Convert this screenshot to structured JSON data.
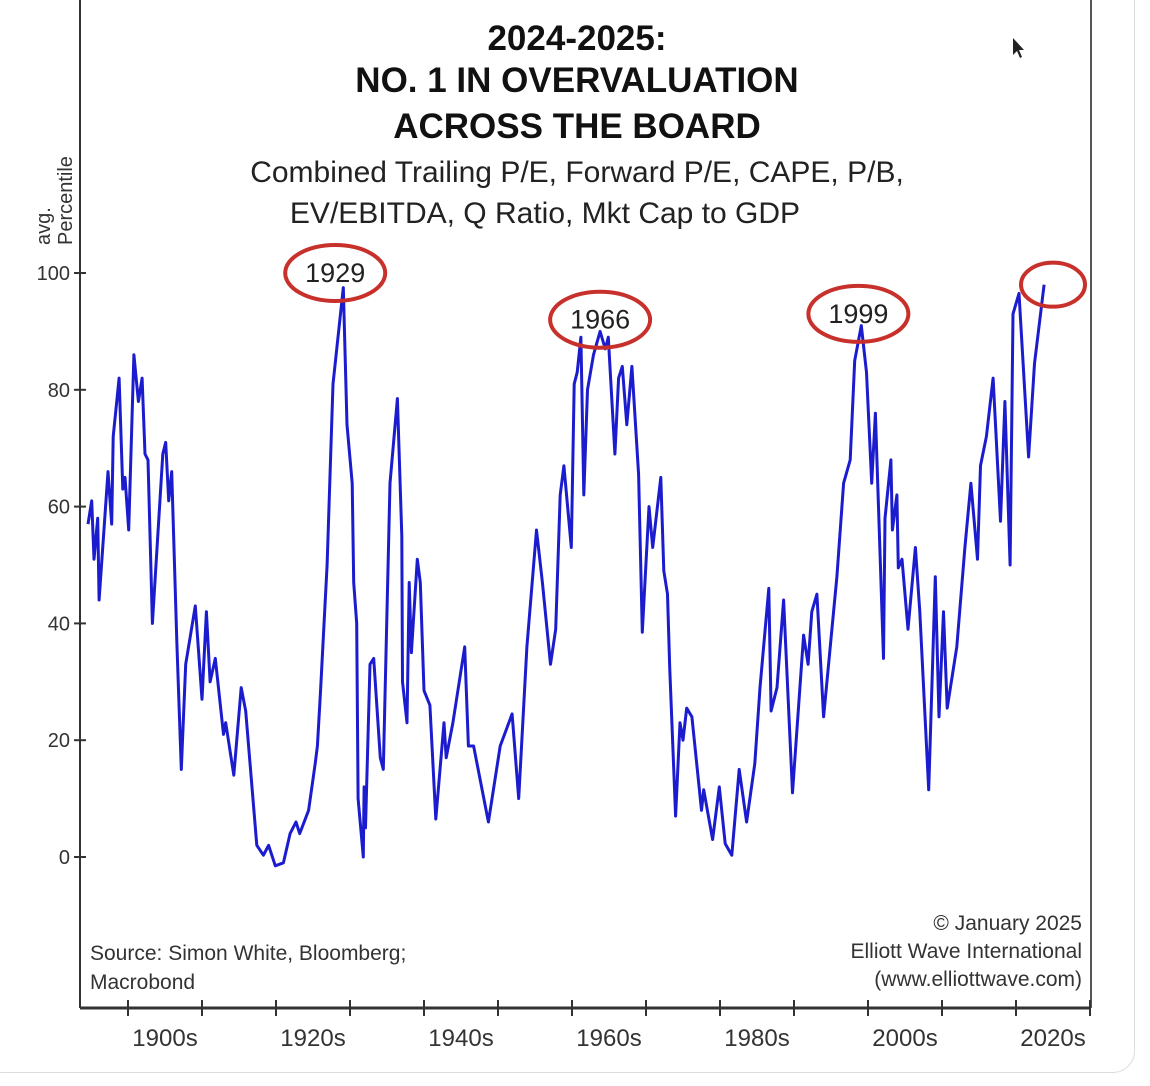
{
  "chart_data": {
    "type": "line",
    "title_lines": [
      "2024-2025:",
      "NO. 1 IN OVERVALUATION",
      "ACROSS THE BOARD"
    ],
    "subtitle_lines": [
      "Combined Trailing P/E, Forward P/E, CAPE, P/B,",
      "EV/EBITDA, Q Ratio, Mkt Cap to GDP"
    ],
    "ylabel_lines": [
      "avg.",
      "Percentile"
    ],
    "xlabel": "",
    "ylim": [
      -20,
      100
    ],
    "xlim": [
      1893.5,
      2030
    ],
    "yticks": [
      0,
      20,
      40,
      60,
      80,
      100
    ],
    "ytick_labels": [
      "0",
      "20",
      "40",
      "60",
      "80",
      "100"
    ],
    "xtick_labels": [
      {
        "label": "1900s",
        "center": 1905
      },
      {
        "label": "1920s",
        "center": 1925
      },
      {
        "label": "1940s",
        "center": 1945
      },
      {
        "label": "1960s",
        "center": 1965
      },
      {
        "label": "1980s",
        "center": 1985
      },
      {
        "label": "2000s",
        "center": 2005
      },
      {
        "label": "2020s",
        "center": 2025
      }
    ],
    "xtick_years": [
      1900,
      1910,
      1920,
      1930,
      1940,
      1950,
      1960,
      1970,
      1980,
      1990,
      2000,
      2010,
      2020,
      2030
    ],
    "grid": false,
    "line_color": "#1c1ccf",
    "annotation_color": "#c8312b",
    "series": [
      {
        "name": "Average valuation percentile",
        "points": [
          [
            1894.6,
            57
          ],
          [
            1895.1,
            61
          ],
          [
            1895.4,
            51
          ],
          [
            1895.9,
            58
          ],
          [
            1896.1,
            44
          ],
          [
            1897.3,
            66
          ],
          [
            1897.8,
            57
          ],
          [
            1898.0,
            72
          ],
          [
            1898.8,
            82
          ],
          [
            1899.3,
            63
          ],
          [
            1899.6,
            65
          ],
          [
            1900.1,
            56
          ],
          [
            1900.8,
            86
          ],
          [
            1901.4,
            78
          ],
          [
            1901.9,
            82
          ],
          [
            1902.3,
            69
          ],
          [
            1902.7,
            68
          ],
          [
            1903.3,
            40
          ],
          [
            1904.7,
            69
          ],
          [
            1905.1,
            71
          ],
          [
            1905.5,
            61
          ],
          [
            1905.9,
            66
          ],
          [
            1906.6,
            37
          ],
          [
            1907.2,
            15
          ],
          [
            1907.8,
            33
          ],
          [
            1909.1,
            43
          ],
          [
            1910.0,
            27
          ],
          [
            1910.6,
            42
          ],
          [
            1911.1,
            30
          ],
          [
            1911.8,
            34
          ],
          [
            1912.9,
            21
          ],
          [
            1913.2,
            23
          ],
          [
            1914.3,
            14
          ],
          [
            1915.3,
            29
          ],
          [
            1915.9,
            25
          ],
          [
            1917.4,
            2
          ],
          [
            1918.3,
            0.3
          ],
          [
            1919.0,
            2
          ],
          [
            1919.9,
            -1.5
          ],
          [
            1921.0,
            -1
          ],
          [
            1921.9,
            4
          ],
          [
            1922.7,
            6
          ],
          [
            1923.2,
            4
          ],
          [
            1924.4,
            8
          ],
          [
            1925.3,
            16
          ],
          [
            1925.6,
            19
          ],
          [
            1926.0,
            28
          ],
          [
            1926.9,
            50
          ],
          [
            1927.7,
            81
          ],
          [
            1929.1,
            97.5
          ],
          [
            1929.6,
            74
          ],
          [
            1930.3,
            64
          ],
          [
            1930.5,
            47
          ],
          [
            1930.9,
            40
          ],
          [
            1931.1,
            10
          ],
          [
            1931.8,
            0
          ],
          [
            1931.9,
            12
          ],
          [
            1932.1,
            5
          ],
          [
            1932.7,
            33
          ],
          [
            1933.2,
            34
          ],
          [
            1934.1,
            17
          ],
          [
            1934.5,
            15
          ],
          [
            1935.4,
            64
          ],
          [
            1936.4,
            78.5
          ],
          [
            1937.0,
            55
          ],
          [
            1937.1,
            30
          ],
          [
            1937.7,
            23
          ],
          [
            1938.0,
            47
          ],
          [
            1938.3,
            35
          ],
          [
            1939.1,
            51
          ],
          [
            1939.5,
            47
          ],
          [
            1940.0,
            28.5
          ],
          [
            1940.8,
            26
          ],
          [
            1941.6,
            6.5
          ],
          [
            1942.7,
            23
          ],
          [
            1943.0,
            17
          ],
          [
            1943.9,
            23
          ],
          [
            1945.5,
            36
          ],
          [
            1946.0,
            19
          ],
          [
            1946.7,
            19
          ],
          [
            1948.7,
            6
          ],
          [
            1950.3,
            19
          ],
          [
            1951.9,
            24.5
          ],
          [
            1952.8,
            10
          ],
          [
            1953.9,
            36
          ],
          [
            1955.2,
            56
          ],
          [
            1956.0,
            47
          ],
          [
            1957.1,
            33
          ],
          [
            1957.8,
            39
          ],
          [
            1958.4,
            62
          ],
          [
            1958.9,
            67
          ],
          [
            1959.9,
            53
          ],
          [
            1960.3,
            81
          ],
          [
            1960.7,
            83
          ],
          [
            1961.2,
            89
          ],
          [
            1961.6,
            62
          ],
          [
            1962.1,
            80
          ],
          [
            1962.9,
            86
          ],
          [
            1963.8,
            90
          ],
          [
            1964.5,
            87
          ],
          [
            1964.9,
            89
          ],
          [
            1965.8,
            69
          ],
          [
            1966.3,
            82
          ],
          [
            1966.8,
            84
          ],
          [
            1967.4,
            74
          ],
          [
            1968.1,
            84
          ],
          [
            1969.0,
            65.5
          ],
          [
            1969.5,
            38.5
          ],
          [
            1970.4,
            60
          ],
          [
            1970.9,
            53
          ],
          [
            1972.0,
            65
          ],
          [
            1972.4,
            49
          ],
          [
            1972.9,
            45
          ],
          [
            1973.2,
            32.5
          ],
          [
            1974.0,
            7
          ],
          [
            1974.6,
            23
          ],
          [
            1975.0,
            20
          ],
          [
            1975.5,
            25.5
          ],
          [
            1976.2,
            24
          ],
          [
            1977.5,
            8
          ],
          [
            1977.8,
            11.5
          ],
          [
            1979.0,
            3
          ],
          [
            1979.9,
            12
          ],
          [
            1980.7,
            2.3
          ],
          [
            1981.6,
            0.3
          ],
          [
            1982.6,
            15
          ],
          [
            1983.6,
            6
          ],
          [
            1984.7,
            16
          ],
          [
            1985.4,
            29
          ],
          [
            1986.6,
            46
          ],
          [
            1986.9,
            25
          ],
          [
            1987.7,
            29
          ],
          [
            1988.6,
            44
          ],
          [
            1989.8,
            11
          ],
          [
            1991.3,
            38
          ],
          [
            1991.9,
            33
          ],
          [
            1992.4,
            42
          ],
          [
            1993.1,
            45
          ],
          [
            1994.0,
            24
          ],
          [
            1995.8,
            48
          ],
          [
            1996.7,
            64
          ],
          [
            1997.6,
            68
          ],
          [
            1998.2,
            85
          ],
          [
            1999.1,
            91
          ],
          [
            1999.8,
            83
          ],
          [
            2000.5,
            64
          ],
          [
            2001.0,
            76
          ],
          [
            2002.1,
            34
          ],
          [
            2002.3,
            58
          ],
          [
            2003.1,
            68
          ],
          [
            2003.3,
            56
          ],
          [
            2003.9,
            62
          ],
          [
            2004.1,
            49.5
          ],
          [
            2004.6,
            51
          ],
          [
            2005.4,
            39
          ],
          [
            2006.4,
            53
          ],
          [
            2007.0,
            42
          ],
          [
            2008.2,
            11.5
          ],
          [
            2009.1,
            48
          ],
          [
            2009.6,
            24
          ],
          [
            2010.2,
            42
          ],
          [
            2010.7,
            25.5
          ],
          [
            2012.0,
            36
          ],
          [
            2013.1,
            53
          ],
          [
            2013.9,
            64
          ],
          [
            2014.8,
            51
          ],
          [
            2015.2,
            67
          ],
          [
            2016.0,
            72
          ],
          [
            2016.9,
            82
          ],
          [
            2017.9,
            57.5
          ],
          [
            2018.5,
            78
          ],
          [
            2019.2,
            50
          ],
          [
            2019.6,
            93
          ],
          [
            2020.4,
            96.5
          ],
          [
            2021.7,
            68.5
          ],
          [
            2022.5,
            84.5
          ],
          [
            2023.8,
            98
          ]
        ]
      }
    ],
    "annotations": [
      {
        "label": "1929",
        "year": 1928,
        "value": 100
      },
      {
        "label": "1966",
        "year": 1963.8,
        "value": 92
      },
      {
        "label": "1999",
        "year": 1998.7,
        "value": 93
      },
      {
        "label": "",
        "year": 2025,
        "value": 98
      }
    ],
    "source_lines": [
      "Source: Simon White, Bloomberg;",
      "Macrobond"
    ],
    "credit_lines": [
      "© January 2025",
      "Elliott Wave International",
      "(www.elliottwave.com)"
    ]
  }
}
